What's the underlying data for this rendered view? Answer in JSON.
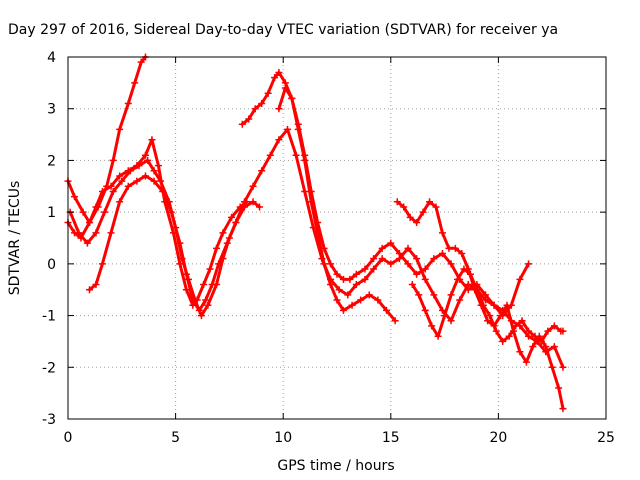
{
  "chart_data": {
    "type": "scatter",
    "title": "Day 297 of 2016, Sidereal Day-to-day VTEC variation (SDTVAR) for receiver ya",
    "xlabel": "GPS time / hours",
    "ylabel": "SDTVAR / TECUs",
    "xlim": [
      0,
      25
    ],
    "ylim": [
      -3,
      4
    ],
    "xticks": [
      0,
      5,
      10,
      15,
      20,
      25
    ],
    "yticks": [
      -3,
      -2,
      -1,
      0,
      1,
      2,
      3,
      4
    ],
    "grid": true,
    "legend": "none",
    "marker": "plus",
    "color": "#ff0000",
    "series": [
      {
        "x": [
          0.0,
          0.3,
          0.6,
          1.0,
          1.4,
          1.8,
          2.1,
          2.4,
          2.8,
          3.1,
          3.4,
          3.6
        ],
        "y": [
          0.8,
          0.6,
          0.5,
          0.8,
          1.1,
          1.5,
          2.0,
          2.6,
          3.1,
          3.5,
          3.9,
          4.0
        ]
      },
      {
        "x": [
          0.0,
          0.3,
          0.7,
          1.0,
          1.3,
          1.6,
          2.0,
          2.4,
          2.8,
          3.2,
          3.6,
          3.9,
          4.2,
          4.5,
          4.9,
          5.2,
          5.5,
          5.8,
          6.0,
          6.3,
          6.6,
          6.9,
          7.2,
          7.6,
          8.0,
          8.3
        ],
        "y": [
          1.6,
          1.3,
          1.0,
          0.8,
          1.1,
          1.4,
          1.5,
          1.7,
          1.8,
          1.9,
          2.1,
          2.4,
          1.9,
          1.2,
          0.6,
          0.0,
          -0.5,
          -0.8,
          -0.7,
          -0.4,
          -0.1,
          0.3,
          0.6,
          0.9,
          1.1,
          1.2
        ]
      },
      {
        "x": [
          0.1,
          0.5,
          0.9,
          1.3,
          1.7,
          2.1,
          2.5,
          2.9,
          3.3,
          3.7,
          4.0,
          4.3,
          4.7,
          5.0,
          5.3,
          5.6,
          5.9,
          6.2,
          6.5,
          6.9,
          7.2,
          7.5,
          7.8,
          8.2,
          8.6,
          8.9
        ],
        "y": [
          1.0,
          0.6,
          0.4,
          0.6,
          1.0,
          1.4,
          1.6,
          1.8,
          1.9,
          2.0,
          1.8,
          1.6,
          1.2,
          0.7,
          0.1,
          -0.3,
          -0.7,
          -1.0,
          -0.8,
          -0.4,
          0.1,
          0.5,
          0.8,
          1.1,
          1.2,
          1.1
        ]
      },
      {
        "x": [
          1.0,
          1.3,
          1.6,
          2.0,
          2.4,
          2.8,
          3.2,
          3.6,
          4.0,
          4.4,
          4.8,
          5.2,
          5.5,
          5.8,
          6.1,
          6.4,
          6.7,
          7.0,
          7.4,
          7.8,
          8.2,
          8.6,
          9.0,
          9.4,
          9.8,
          10.2,
          10.6,
          11.0,
          11.4,
          11.8,
          12.2,
          12.6,
          13.0,
          13.4,
          13.8,
          14.2,
          14.6,
          15.0,
          15.4,
          15.8,
          16.2,
          16.6,
          17.0,
          17.4,
          17.8,
          18.2,
          18.6,
          19.0,
          19.4,
          19.8,
          20.2,
          20.6,
          21.0,
          21.4,
          21.8,
          22.2,
          22.6,
          23.0
        ],
        "y": [
          -0.5,
          -0.4,
          0.0,
          0.6,
          1.2,
          1.5,
          1.6,
          1.7,
          1.6,
          1.4,
          1.0,
          0.4,
          -0.2,
          -0.7,
          -0.9,
          -0.7,
          -0.4,
          0.0,
          0.4,
          0.8,
          1.2,
          1.5,
          1.8,
          2.1,
          2.4,
          2.6,
          2.1,
          1.4,
          0.7,
          0.1,
          -0.3,
          -0.5,
          -0.6,
          -0.4,
          -0.3,
          -0.1,
          0.1,
          0.0,
          0.1,
          0.3,
          0.1,
          -0.3,
          -0.6,
          -0.9,
          -1.1,
          -0.7,
          -0.4,
          -0.5,
          -0.7,
          -0.8,
          -0.9,
          -1.1,
          -1.2,
          -1.4,
          -1.5,
          -1.7,
          -1.6,
          -2.0
        ]
      },
      {
        "x": [
          8.1,
          8.4,
          8.7,
          9.0,
          9.3,
          9.6,
          9.8,
          10.1,
          10.4,
          10.7,
          11.0,
          11.3,
          11.6,
          11.9,
          12.2,
          12.5,
          12.8,
          13.1,
          13.4,
          13.8,
          14.2,
          14.6,
          15.0,
          15.4,
          15.8,
          16.2,
          16.6,
          17.0,
          17.4,
          17.8,
          18.2,
          18.6,
          19.0,
          19.4,
          19.8,
          20.2,
          20.6,
          21.0,
          21.4
        ],
        "y": [
          2.7,
          2.8,
          3.0,
          3.1,
          3.3,
          3.6,
          3.7,
          3.5,
          3.2,
          2.7,
          2.1,
          1.4,
          0.8,
          0.3,
          0.0,
          -0.2,
          -0.3,
          -0.3,
          -0.2,
          -0.1,
          0.1,
          0.3,
          0.4,
          0.2,
          0.0,
          -0.2,
          -0.1,
          0.1,
          0.2,
          0.0,
          -0.3,
          -0.5,
          -0.4,
          -0.6,
          -0.8,
          -1.0,
          -0.8,
          -0.3,
          0.0
        ]
      },
      {
        "x": [
          9.8,
          10.1,
          10.4,
          10.7,
          11.0,
          11.3,
          11.6,
          11.9,
          12.2,
          12.5,
          12.8,
          13.2,
          13.6,
          14.0,
          14.4,
          14.8,
          15.2
        ],
        "y": [
          3.0,
          3.4,
          3.2,
          2.6,
          2.0,
          1.2,
          0.6,
          0.0,
          -0.4,
          -0.7,
          -0.9,
          -0.8,
          -0.7,
          -0.6,
          -0.7,
          -0.9,
          -1.1
        ]
      },
      {
        "x": [
          15.3,
          15.6,
          15.9,
          16.2,
          16.5,
          16.8,
          17.1,
          17.4,
          17.7,
          18.0,
          18.3,
          18.6,
          18.9,
          19.2,
          19.5,
          19.8,
          20.1,
          20.4,
          20.7,
          21.0,
          21.3,
          21.6,
          21.9,
          22.2,
          22.5,
          22.8,
          23.0
        ],
        "y": [
          1.2,
          1.1,
          0.9,
          0.8,
          1.0,
          1.2,
          1.1,
          0.6,
          0.3,
          0.3,
          0.2,
          -0.1,
          -0.5,
          -0.8,
          -1.1,
          -1.2,
          -1.0,
          -0.8,
          -1.3,
          -1.7,
          -1.9,
          -1.6,
          -1.4,
          -1.6,
          -2.0,
          -2.4,
          -2.8
        ]
      },
      {
        "x": [
          16.0,
          16.3,
          16.6,
          16.9,
          17.2,
          17.5,
          17.8,
          18.1,
          18.4,
          18.7,
          19.0,
          19.3,
          19.6,
          19.9,
          20.2,
          20.5,
          20.8,
          21.1,
          21.4,
          21.7,
          22.0,
          22.3,
          22.6,
          22.9,
          23.0
        ],
        "y": [
          -0.4,
          -0.6,
          -0.9,
          -1.2,
          -1.4,
          -1.0,
          -0.6,
          -0.3,
          -0.1,
          -0.2,
          -0.5,
          -0.8,
          -1.0,
          -1.3,
          -1.5,
          -1.4,
          -1.2,
          -1.1,
          -1.3,
          -1.4,
          -1.5,
          -1.3,
          -1.2,
          -1.3,
          -1.3
        ]
      }
    ]
  }
}
